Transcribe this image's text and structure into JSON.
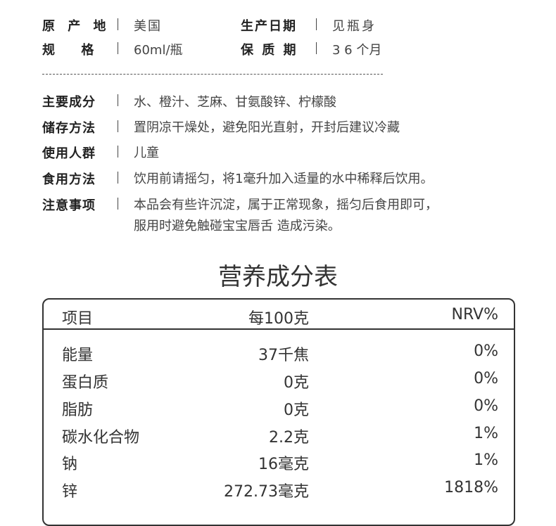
{
  "basic_info": [
    {
      "label": "原 产 地",
      "value": "美国"
    },
    {
      "label": "规     格",
      "value": "60ml/瓶"
    },
    {
      "label": "生产日期",
      "value": "见瓶身"
    },
    {
      "label": "保 质 期",
      "value": "3 6 个月"
    }
  ],
  "details": [
    {
      "label": "主要成分",
      "value": "水、橙汁、芝麻、甘氨酸锌、柠檬酸"
    },
    {
      "label": "储存方法",
      "value": "置阴凉干燥处，避免阳光直射，开封后建议冷藏"
    },
    {
      "label": "使用人群",
      "value": "儿童"
    },
    {
      "label": "食用方法",
      "value": "饮用前请摇匀，将1毫升加入适量的水中稀释后饮用。"
    },
    {
      "label": "注意事项",
      "value": "本品会有些许沉淀，属于正常现象，摇匀后食用即可，",
      "value2": "服用时避免触碰宝宝唇舌 造成污染。"
    }
  ],
  "nutrition": {
    "title": "营养成分表",
    "headers": [
      "项目",
      "每100克",
      "NRV%"
    ],
    "rows": [
      [
        "能量",
        "37千焦",
        "0%"
      ],
      [
        "蛋白质",
        "0克",
        "0%"
      ],
      [
        "脂肪",
        "0克",
        "0%"
      ],
      [
        "碳水化合物",
        "2.2克",
        "1%"
      ],
      [
        "钠",
        "16毫克",
        "1%"
      ],
      [
        "锌",
        "272.73毫克",
        "1818%"
      ]
    ]
  }
}
